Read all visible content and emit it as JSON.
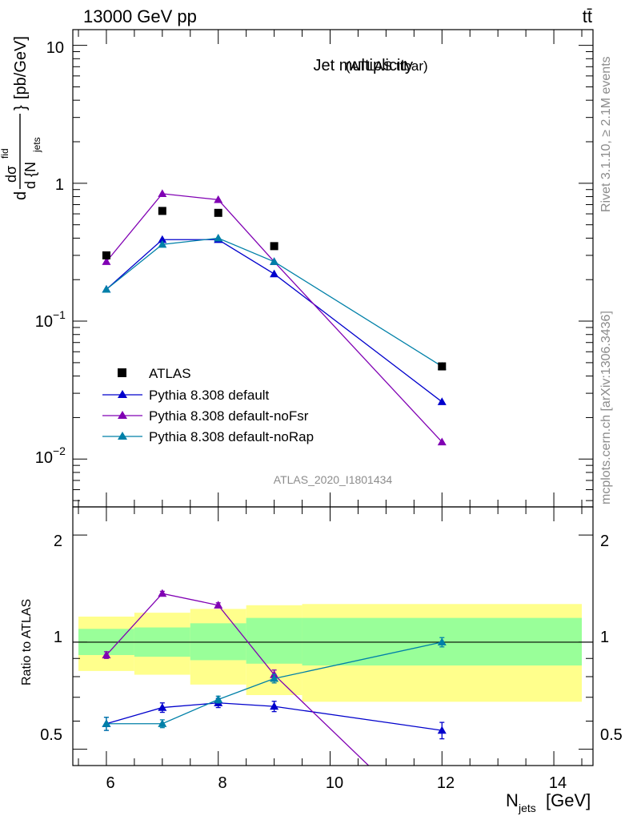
{
  "header": {
    "energy_label": "13000 GeV pp",
    "process_label": "tt̄"
  },
  "side_labels": {
    "rivet": "Rivet 3.1.10, ≥ 2.1M events",
    "mcplots": "mcplots.cern.ch [arXiv:1306.3436]"
  },
  "analysis_id": "ATLAS_2020_I1801434",
  "chart_data": [
    {
      "type": "line",
      "title_main": "Jet multiplicity",
      "title_sub": "(ATLAS ttbar)",
      "ylabel_parts": [
        "d",
        "dσ",
        "fid",
        "d {N",
        "jets",
        "}",
        "[pb/GeV]"
      ],
      "yscale": "log",
      "ylim": [
        0.0045,
        13
      ],
      "xlim": [
        5.4,
        14.7
      ],
      "y_tick_labels": [
        "10",
        "1",
        "10",
        "−1",
        "10",
        "−2"
      ],
      "y_tick_values": [
        10,
        1,
        0.1,
        0.01
      ],
      "legend_placement": "bottom-left",
      "data_series": {
        "name": "ATLAS",
        "marker": "square",
        "color": "#000000",
        "x": [
          6,
          7,
          8,
          9,
          12
        ],
        "y": [
          0.3,
          0.63,
          0.61,
          0.35,
          0.047
        ]
      },
      "series": [
        {
          "name": "Pythia 8.308 default",
          "color": "#0000cc",
          "x": [
            6,
            7,
            8,
            9,
            12
          ],
          "y": [
            0.17,
            0.39,
            0.39,
            0.22,
            0.026
          ]
        },
        {
          "name": "Pythia 8.308 default-noFsr",
          "color": "#8000b3",
          "x": [
            6,
            7,
            8,
            9,
            12
          ],
          "y": [
            0.27,
            0.84,
            0.76,
            0.27,
            0.0133
          ]
        },
        {
          "name": "Pythia 8.308 default-noRap",
          "color": "#0080a8",
          "x": [
            6,
            7,
            8,
            9,
            12
          ],
          "y": [
            0.17,
            0.36,
            0.4,
            0.27,
            0.047
          ]
        }
      ]
    },
    {
      "type": "line",
      "ylabel": "Ratio to ATLAS",
      "xlabel_parts": [
        "N",
        "jets",
        "[GeV]"
      ],
      "yscale": "log",
      "ylim": [
        0.45,
        2.4
      ],
      "xlim": [
        5.4,
        14.7
      ],
      "x_ticks": [
        6,
        8,
        10,
        12,
        14
      ],
      "x_tick_labels": [
        "6",
        "8",
        "10",
        "12",
        "14"
      ],
      "y_tick_values": [
        0.5,
        1,
        2
      ],
      "y_tick_labels": [
        "0.5",
        "1",
        "2"
      ],
      "bands": {
        "edges": [
          5.5,
          6.5,
          7.5,
          8.5,
          9.5,
          14.5
        ],
        "yellow_low": [
          0.83,
          0.81,
          0.76,
          0.71,
          0.68
        ],
        "yellow_high": [
          1.18,
          1.21,
          1.24,
          1.27,
          1.28
        ],
        "green_low": [
          0.92,
          0.91,
          0.89,
          0.87,
          0.86
        ],
        "green_high": [
          1.09,
          1.1,
          1.13,
          1.17,
          1.17
        ],
        "yellow_color": "#ffff8c",
        "green_color": "#99ff99"
      },
      "series": [
        {
          "name": "Pythia 8.308 default",
          "color": "#0000cc",
          "x": [
            6,
            7,
            8,
            9,
            12
          ],
          "y": [
            0.59,
            0.655,
            0.675,
            0.66,
            0.565
          ],
          "yerr": [
            0.025,
            0.02,
            0.02,
            0.022,
            0.03
          ]
        },
        {
          "name": "Pythia 8.308 default-noFsr",
          "color": "#8000b3",
          "x": [
            6,
            7,
            8,
            9,
            12
          ],
          "y": [
            0.92,
            1.37,
            1.27,
            0.81,
            0.285
          ],
          "yerr": [
            0.02,
            0.02,
            0.02,
            0.025,
            0.03
          ]
        },
        {
          "name": "Pythia 8.308 default-noRap",
          "color": "#0080a8",
          "x": [
            6,
            7,
            8,
            9,
            12
          ],
          "y": [
            0.59,
            0.59,
            0.69,
            0.79,
            1.0
          ],
          "yerr": [
            0.025,
            0.015,
            0.015,
            0.022,
            0.03
          ]
        }
      ]
    }
  ]
}
